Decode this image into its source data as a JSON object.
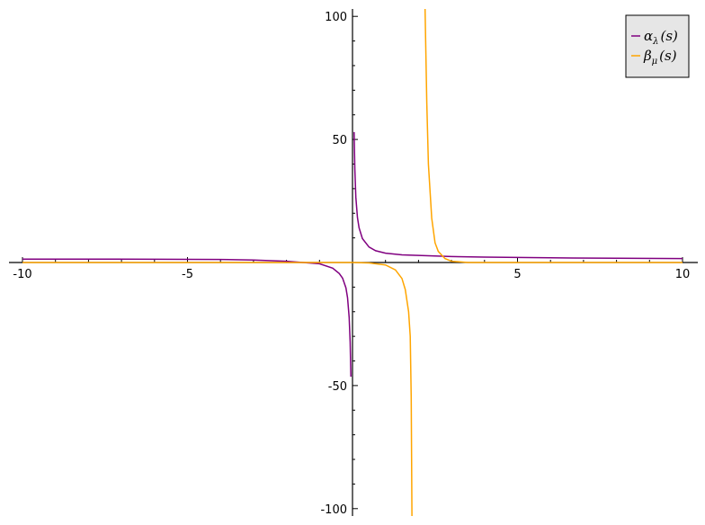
{
  "chart_data": {
    "type": "line",
    "title": "",
    "xlabel": "",
    "ylabel": "",
    "xlim": [
      -10,
      10
    ],
    "ylim": [
      -103,
      103
    ],
    "grid": false,
    "legend_position": "top-right",
    "x_ticks": [
      {
        "value": -10,
        "label": "-10"
      },
      {
        "value": -5,
        "label": "-5"
      },
      {
        "value": 5,
        "label": "5"
      },
      {
        "value": 10,
        "label": "10"
      }
    ],
    "y_ticks": [
      {
        "value": 100,
        "label": "100"
      },
      {
        "value": 50,
        "label": "50"
      },
      {
        "value": -50,
        "label": "-50"
      },
      {
        "value": -100,
        "label": "-100"
      }
    ],
    "series": [
      {
        "name": "α_λ(s)",
        "legend_main": "α",
        "legend_sub": "λ",
        "legend_arg": "(s)",
        "color": "#800080",
        "x": [
          -10,
          -8,
          -6,
          -4,
          -3,
          -2,
          -1.5,
          -1,
          -0.6,
          -0.4,
          -0.3,
          -0.2,
          -0.15,
          -0.1,
          -0.07,
          -0.05,
          0.05,
          0.07,
          0.1,
          0.15,
          0.2,
          0.3,
          0.5,
          0.7,
          1,
          1.5,
          2,
          3,
          4,
          6,
          8,
          10
        ],
        "y": [
          1.4,
          1.38,
          1.33,
          1.25,
          1.0,
          0.5,
          0.0,
          -0.5,
          -2.3,
          -4.5,
          -6.4,
          -10.3,
          -14.3,
          -22.4,
          -32.4,
          -46.4,
          53.0,
          38.0,
          26.6,
          18.3,
          14.1,
          9.7,
          6.3,
          4.8,
          3.8,
          3.1,
          2.9,
          2.4,
          2.2,
          1.9,
          1.7,
          1.6
        ]
      },
      {
        "name": "β_μ(s)",
        "legend_main": "β",
        "legend_sub": "μ",
        "legend_arg": "(s)",
        "color": "#ffa500",
        "x": [
          -10,
          -6,
          -2,
          -1,
          0,
          0.5,
          1.0,
          1.3,
          1.5,
          1.6,
          1.7,
          1.75,
          1.78,
          1.8,
          2.2,
          2.25,
          2.3,
          2.4,
          2.5,
          2.6,
          2.8,
          3.0,
          3.5,
          4,
          6,
          8,
          10
        ],
        "y": [
          0.0,
          0.0,
          0.0,
          0.0,
          0.0,
          -0.2,
          -1.0,
          -3.0,
          -6.5,
          -11.0,
          -20.0,
          -30.0,
          -55.0,
          -103.0,
          103.0,
          65.0,
          40.0,
          18.0,
          8.0,
          4.5,
          1.6,
          0.5,
          0.0,
          0.0,
          0.0,
          0.0,
          0.0
        ]
      }
    ]
  }
}
